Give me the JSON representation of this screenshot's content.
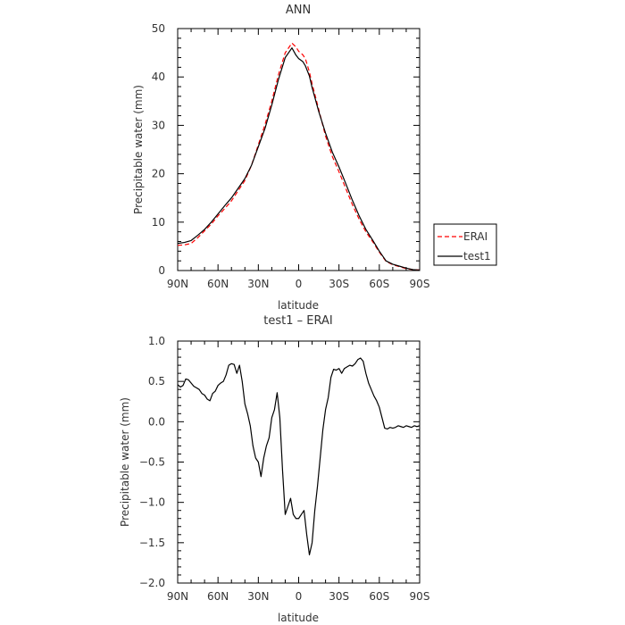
{
  "chart_data": [
    {
      "type": "line",
      "title": "ANN",
      "xlabel": "latitude",
      "ylabel": "Precipitable water (mm)",
      "xlim": [
        90,
        -90
      ],
      "ylim": [
        0,
        50
      ],
      "xticks": [
        90,
        60,
        30,
        0,
        -30,
        -60,
        -90
      ],
      "xtick_labels": [
        "90N",
        "60N",
        "30N",
        "0",
        "30S",
        "60S",
        "90S"
      ],
      "yticks": [
        0,
        10,
        20,
        30,
        40,
        50
      ],
      "ytick_labels": [
        "0",
        "10",
        "20",
        "30",
        "40",
        "50"
      ],
      "legend_position": "right",
      "series": [
        {
          "name": "ERAI",
          "color": "#ff0000",
          "dash": "dashed",
          "x": [
            90,
            85,
            80,
            75,
            70,
            65,
            60,
            55,
            50,
            45,
            40,
            35,
            30,
            25,
            20,
            15,
            10,
            5,
            2,
            0,
            -3,
            -5,
            -8,
            -10,
            -15,
            -20,
            -25,
            -30,
            -35,
            -40,
            -45,
            -50,
            -55,
            -60,
            -65,
            -70,
            -75,
            -80,
            -85,
            -90
          ],
          "y": [
            5.2,
            5.3,
            5.6,
            6.8,
            8.2,
            9.6,
            11.3,
            12.8,
            14.4,
            16.5,
            18.6,
            21.8,
            26.0,
            30.2,
            35.0,
            40.5,
            45.0,
            47.0,
            46.2,
            45.3,
            44.6,
            43.8,
            41.0,
            38.6,
            33.2,
            27.8,
            23.6,
            20.4,
            17.0,
            13.6,
            10.6,
            8.0,
            6.0,
            3.8,
            1.9,
            1.2,
            0.8,
            0.4,
            0.2,
            0.1
          ]
        },
        {
          "name": "test1",
          "color": "#000000",
          "dash": "solid",
          "x": [
            90,
            85,
            80,
            75,
            70,
            65,
            60,
            55,
            50,
            45,
            40,
            35,
            30,
            25,
            20,
            15,
            10,
            5,
            2,
            0,
            -3,
            -5,
            -8,
            -10,
            -15,
            -20,
            -25,
            -30,
            -35,
            -40,
            -45,
            -50,
            -55,
            -60,
            -65,
            -70,
            -75,
            -80,
            -85,
            -90
          ],
          "y": [
            5.6,
            5.8,
            6.2,
            7.3,
            8.5,
            10.0,
            11.7,
            13.4,
            15.0,
            17.0,
            19.0,
            21.8,
            25.6,
            29.4,
            34.2,
            39.5,
            44.0,
            46.0,
            44.5,
            43.8,
            43.2,
            42.3,
            40.2,
            37.8,
            32.8,
            28.4,
            24.5,
            21.4,
            18.0,
            14.5,
            11.3,
            8.5,
            6.3,
            4.0,
            2.0,
            1.3,
            0.9,
            0.5,
            0.2,
            0.1
          ]
        }
      ]
    },
    {
      "type": "line",
      "title": "test1 – ERAI",
      "xlabel": "latitude",
      "ylabel": "Precipitable water (mm)",
      "xlim": [
        90,
        -90
      ],
      "ylim": [
        -2.0,
        1.0
      ],
      "xticks": [
        90,
        60,
        30,
        0,
        -30,
        -60,
        -90
      ],
      "xtick_labels": [
        "90N",
        "60N",
        "30N",
        "0",
        "30S",
        "60S",
        "90S"
      ],
      "yticks": [
        -2.0,
        -1.5,
        -1.0,
        -0.5,
        0.0,
        0.5,
        1.0
      ],
      "ytick_labels": [
        "−2.0",
        "−1.5",
        "−1.0",
        "−0.5",
        "0.0",
        "0.5",
        "1.0"
      ],
      "series": [
        {
          "name": "",
          "color": "#000000",
          "dash": "solid",
          "x": [
            90,
            88,
            86,
            84,
            82,
            80,
            78,
            76,
            74,
            72,
            70,
            68,
            66,
            64,
            62,
            60,
            58,
            56,
            54,
            52,
            50,
            48,
            46,
            44,
            42,
            40,
            38,
            36,
            34,
            32,
            30,
            28,
            26,
            24,
            22,
            20,
            18,
            16,
            14,
            12,
            10,
            8,
            6,
            4,
            2,
            0,
            -2,
            -4,
            -6,
            -8,
            -10,
            -12,
            -14,
            -16,
            -18,
            -20,
            -22,
            -24,
            -26,
            -28,
            -30,
            -32,
            -34,
            -36,
            -38,
            -40,
            -42,
            -44,
            -46,
            -48,
            -50,
            -52,
            -54,
            -56,
            -58,
            -60,
            -62,
            -64,
            -66,
            -68,
            -70,
            -72,
            -74,
            -76,
            -78,
            -80,
            -82,
            -84,
            -86,
            -88,
            -90
          ],
          "y": [
            0.46,
            0.43,
            0.45,
            0.53,
            0.52,
            0.48,
            0.44,
            0.42,
            0.4,
            0.35,
            0.33,
            0.28,
            0.26,
            0.35,
            0.38,
            0.45,
            0.48,
            0.5,
            0.58,
            0.7,
            0.72,
            0.71,
            0.6,
            0.7,
            0.5,
            0.22,
            0.1,
            -0.05,
            -0.3,
            -0.45,
            -0.5,
            -0.68,
            -0.45,
            -0.3,
            -0.2,
            0.05,
            0.15,
            0.36,
            0.05,
            -0.6,
            -1.15,
            -1.05,
            -0.95,
            -1.15,
            -1.2,
            -1.2,
            -1.15,
            -1.1,
            -1.4,
            -1.65,
            -1.5,
            -1.1,
            -0.8,
            -0.45,
            -0.1,
            0.15,
            0.3,
            0.55,
            0.65,
            0.64,
            0.66,
            0.6,
            0.66,
            0.68,
            0.7,
            0.69,
            0.72,
            0.77,
            0.79,
            0.75,
            0.6,
            0.48,
            0.4,
            0.32,
            0.26,
            0.18,
            0.05,
            -0.08,
            -0.09,
            -0.07,
            -0.08,
            -0.07,
            -0.05,
            -0.06,
            -0.07,
            -0.05,
            -0.06,
            -0.07,
            -0.05,
            -0.06,
            -0.05
          ]
        }
      ]
    }
  ]
}
